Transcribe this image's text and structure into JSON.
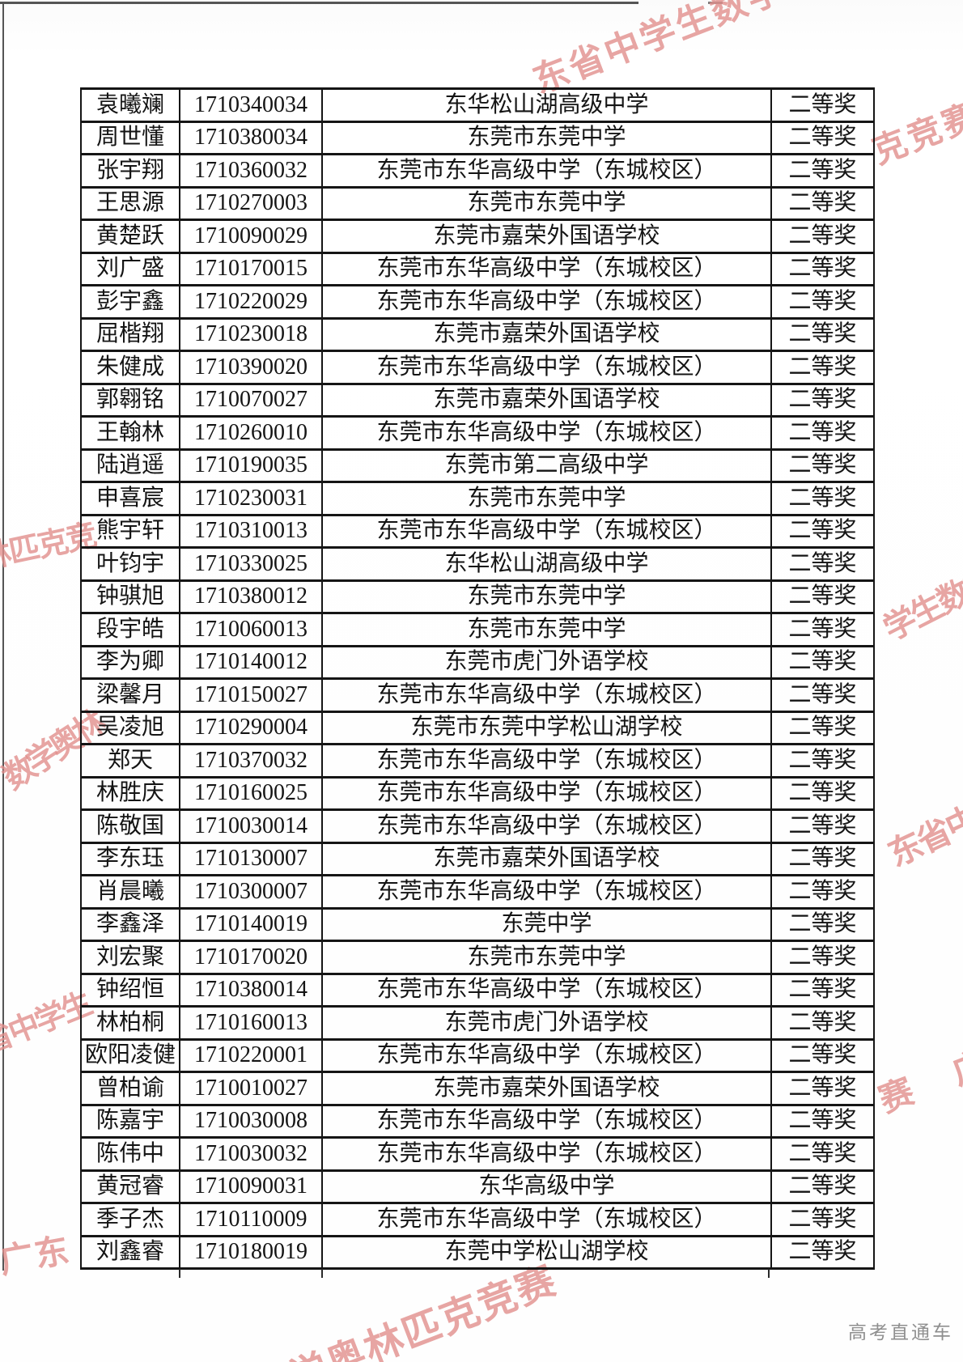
{
  "table": {
    "award_label": "二等奖",
    "rows": [
      {
        "name": "袁曦斓",
        "id": "1710340034",
        "school": "东华松山湖高级中学",
        "award": "二等奖"
      },
      {
        "name": "周世懂",
        "id": "1710380034",
        "school": "东莞市东莞中学",
        "award": "二等奖"
      },
      {
        "name": "张宇翔",
        "id": "1710360032",
        "school": "东莞市东华高级中学（东城校区）",
        "award": "二等奖"
      },
      {
        "name": "王思源",
        "id": "1710270003",
        "school": "东莞市东莞中学",
        "award": "二等奖"
      },
      {
        "name": "黄楚跃",
        "id": "1710090029",
        "school": "东莞市嘉荣外国语学校",
        "award": "二等奖"
      },
      {
        "name": "刘广盛",
        "id": "1710170015",
        "school": "东莞市东华高级中学（东城校区）",
        "award": "二等奖"
      },
      {
        "name": "彭宇鑫",
        "id": "1710220029",
        "school": "东莞市东华高级中学（东城校区）",
        "award": "二等奖"
      },
      {
        "name": "屈楷翔",
        "id": "1710230018",
        "school": "东莞市嘉荣外国语学校",
        "award": "二等奖"
      },
      {
        "name": "朱健成",
        "id": "1710390020",
        "school": "东莞市东华高级中学（东城校区）",
        "award": "二等奖"
      },
      {
        "name": "郭翱铭",
        "id": "1710070027",
        "school": "东莞市嘉荣外国语学校",
        "award": "二等奖"
      },
      {
        "name": "王翰林",
        "id": "1710260010",
        "school": "东莞市东华高级中学（东城校区）",
        "award": "二等奖"
      },
      {
        "name": "陆逍遥",
        "id": "1710190035",
        "school": "东莞市第二高级中学",
        "award": "二等奖"
      },
      {
        "name": "申喜宸",
        "id": "1710230031",
        "school": "东莞市东莞中学",
        "award": "二等奖"
      },
      {
        "name": "熊宇轩",
        "id": "1710310013",
        "school": "东莞市东华高级中学（东城校区）",
        "award": "二等奖"
      },
      {
        "name": "叶钧宇",
        "id": "1710330025",
        "school": "东华松山湖高级中学",
        "award": "二等奖"
      },
      {
        "name": "钟骐旭",
        "id": "1710380012",
        "school": "东莞市东莞中学",
        "award": "二等奖"
      },
      {
        "name": "段宇皓",
        "id": "1710060013",
        "school": "东莞市东莞中学",
        "award": "二等奖"
      },
      {
        "name": "李为卿",
        "id": "1710140012",
        "school": "东莞市虎门外语学校",
        "award": "二等奖"
      },
      {
        "name": "梁馨月",
        "id": "1710150027",
        "school": "东莞市东华高级中学（东城校区）",
        "award": "二等奖"
      },
      {
        "name": "吴凌旭",
        "id": "1710290004",
        "school": "东莞市东莞中学松山湖学校",
        "award": "二等奖"
      },
      {
        "name": "郑天",
        "id": "1710370032",
        "school": "东莞市东华高级中学（东城校区）",
        "award": "二等奖"
      },
      {
        "name": "林胜庆",
        "id": "1710160025",
        "school": "东莞市东华高级中学（东城校区）",
        "award": "二等奖"
      },
      {
        "name": "陈敬国",
        "id": "1710030014",
        "school": "东莞市东华高级中学（东城校区）",
        "award": "二等奖"
      },
      {
        "name": "李东珏",
        "id": "1710130007",
        "school": "东莞市嘉荣外国语学校",
        "award": "二等奖"
      },
      {
        "name": "肖晨曦",
        "id": "1710300007",
        "school": "东莞市东华高级中学（东城校区）",
        "award": "二等奖"
      },
      {
        "name": "李鑫泽",
        "id": "1710140019",
        "school": "东莞中学",
        "award": "二等奖"
      },
      {
        "name": "刘宏聚",
        "id": "1710170020",
        "school": "东莞市东莞中学",
        "award": "二等奖"
      },
      {
        "name": "钟绍恒",
        "id": "1710380014",
        "school": "东莞市东华高级中学（东城校区）",
        "award": "二等奖"
      },
      {
        "name": "林柏桐",
        "id": "1710160013",
        "school": "东莞市虎门外语学校",
        "award": "二等奖"
      },
      {
        "name": "欧阳凌健",
        "id": "1710220001",
        "school": "东莞市东华高级中学（东城校区）",
        "award": "二等奖"
      },
      {
        "name": "曾柏谕",
        "id": "1710010027",
        "school": "东莞市嘉荣外国语学校",
        "award": "二等奖"
      },
      {
        "name": "陈嘉宇",
        "id": "1710030008",
        "school": "东莞市东华高级中学（东城校区）",
        "award": "二等奖"
      },
      {
        "name": "陈伟中",
        "id": "1710030032",
        "school": "东莞市东华高级中学（东城校区）",
        "award": "二等奖"
      },
      {
        "name": "黄冠睿",
        "id": "1710090031",
        "school": "东华高级中学",
        "award": "二等奖"
      },
      {
        "name": "季子杰",
        "id": "1710110009",
        "school": "东莞市东华高级中学（东城校区）",
        "award": "二等奖"
      },
      {
        "name": "刘鑫睿",
        "id": "1710180019",
        "school": "东莞中学松山湖学校",
        "award": "二等奖"
      }
    ]
  },
  "watermarks": {
    "full_text": "广东省中学生数学奥林匹克竞赛",
    "color": "#e18f8c",
    "fragments": [
      {
        "text": "东省中学生数学"
      },
      {
        "text": "克竞赛"
      },
      {
        "text": "林匹克竞"
      },
      {
        "text": "数学奥林"
      },
      {
        "text": "省中学生"
      },
      {
        "text": "学生数学"
      },
      {
        "text": "东省中"
      },
      {
        "text": "赛"
      },
      {
        "text": "广"
      },
      {
        "text": "广东"
      },
      {
        "text": "数学奥林匹克竞赛"
      }
    ]
  },
  "footer": {
    "brand": "高考直通车"
  }
}
